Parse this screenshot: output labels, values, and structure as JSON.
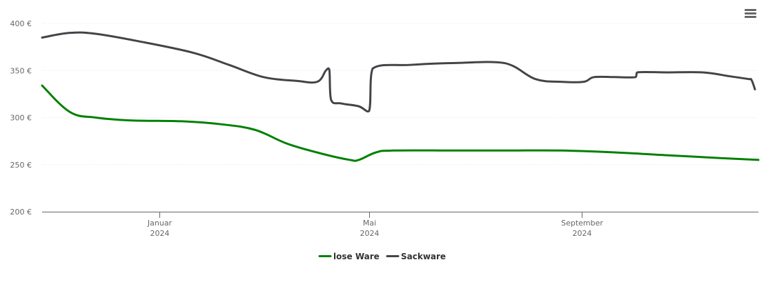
{
  "chart_data": {
    "type": "line",
    "title": "",
    "xlabel": "",
    "ylabel": "",
    "ylim": [
      200,
      400
    ],
    "y_ticks": [
      {
        "value": 200,
        "label": "200 €"
      },
      {
        "value": 250,
        "label": "250 €"
      },
      {
        "value": 300,
        "label": "300 €"
      },
      {
        "value": 350,
        "label": "350 €"
      },
      {
        "value": 400,
        "label": "400 €"
      }
    ],
    "xlim": [
      "2023-10-25",
      "2024-12-12"
    ],
    "x_ticks": [
      {
        "date": "2024-01-01",
        "month": "Januar",
        "year": "2024"
      },
      {
        "date": "2024-05-01",
        "month": "Mai",
        "year": "2024"
      },
      {
        "date": "2024-09-01",
        "month": "September",
        "year": "2024"
      }
    ],
    "grid": true,
    "legend_position": "bottom-center",
    "series": [
      {
        "name": "lose Ware",
        "color": "#008000",
        "points": [
          [
            "2023-10-25",
            334
          ],
          [
            "2023-11-10",
            306
          ],
          [
            "2023-11-25",
            300
          ],
          [
            "2023-12-15",
            297
          ],
          [
            "2024-01-15",
            296
          ],
          [
            "2024-02-05",
            293
          ],
          [
            "2024-02-25",
            287
          ],
          [
            "2024-03-15",
            272
          ],
          [
            "2024-04-05",
            261
          ],
          [
            "2024-04-20",
            255
          ],
          [
            "2024-04-25",
            255
          ],
          [
            "2024-05-05",
            263
          ],
          [
            "2024-05-15",
            265
          ],
          [
            "2024-06-20",
            265
          ],
          [
            "2024-07-20",
            265
          ],
          [
            "2024-08-20",
            265
          ],
          [
            "2024-09-20",
            263
          ],
          [
            "2024-10-20",
            260
          ],
          [
            "2024-11-20",
            257
          ],
          [
            "2024-12-12",
            255
          ]
        ]
      },
      {
        "name": "Sackware",
        "color": "#434348",
        "points": [
          [
            "2023-10-25",
            385
          ],
          [
            "2023-11-10",
            390
          ],
          [
            "2023-11-25",
            389
          ],
          [
            "2023-12-20",
            381
          ],
          [
            "2024-01-20",
            369
          ],
          [
            "2024-02-10",
            356
          ],
          [
            "2024-03-01",
            343
          ],
          [
            "2024-03-20",
            339
          ],
          [
            "2024-04-01",
            338
          ],
          [
            "2024-04-06",
            350
          ],
          [
            "2024-04-08",
            351
          ],
          [
            "2024-04-09",
            319
          ],
          [
            "2024-04-15",
            315
          ],
          [
            "2024-04-25",
            312
          ],
          [
            "2024-05-01",
            307
          ],
          [
            "2024-05-03",
            352
          ],
          [
            "2024-05-25",
            356
          ],
          [
            "2024-06-20",
            358
          ],
          [
            "2024-07-18",
            358
          ],
          [
            "2024-08-05",
            341
          ],
          [
            "2024-08-20",
            338
          ],
          [
            "2024-09-02",
            338
          ],
          [
            "2024-09-08",
            343
          ],
          [
            "2024-09-20",
            343
          ],
          [
            "2024-10-02",
            343
          ],
          [
            "2024-10-03",
            348
          ],
          [
            "2024-10-20",
            348
          ],
          [
            "2024-11-10",
            348
          ],
          [
            "2024-11-25",
            344
          ],
          [
            "2024-12-06",
            341
          ],
          [
            "2024-12-08",
            340
          ],
          [
            "2024-12-10",
            330
          ]
        ]
      }
    ]
  },
  "ui": {
    "menu_icon": "hamburger-menu-icon"
  }
}
